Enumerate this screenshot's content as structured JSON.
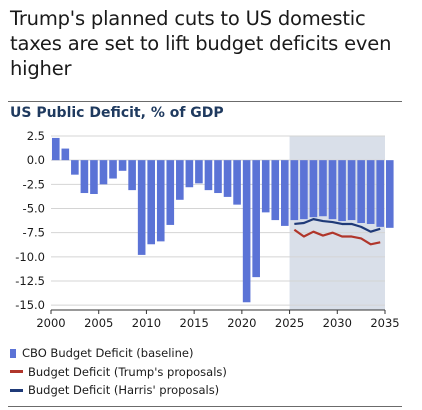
{
  "headline": "Trump's planned cuts to US domestic taxes are set to lift budget deficits even higher",
  "chart_data": {
    "type": "bar",
    "title": "US Public Deficit, % of GDP",
    "xlabel": "",
    "ylabel": "",
    "ylim": [
      -15.5,
      2.5
    ],
    "yticks": [
      2.5,
      0.0,
      -2.5,
      -5.0,
      -7.5,
      -10.0,
      -12.5,
      -15.0
    ],
    "ytick_labels": [
      "2.5",
      "0.0",
      "-2.5",
      "-5.0",
      "-7.5",
      "-10.0",
      "-12.5",
      "-15.0"
    ],
    "xticks": [
      2000,
      2005,
      2010,
      2015,
      2020,
      2025,
      2030,
      2035
    ],
    "xtick_labels": [
      "2000",
      "2005",
      "2010",
      "2015",
      "2020",
      "2025",
      "2030",
      "2035"
    ],
    "grid": "horizontal",
    "projection_shading": [
      2025,
      2035
    ],
    "bars": {
      "name": "CBO Budget Deficit (baseline)",
      "color": "#5b73d6",
      "x": [
        2000,
        2001,
        2002,
        2003,
        2004,
        2005,
        2006,
        2007,
        2008,
        2009,
        2010,
        2011,
        2012,
        2013,
        2014,
        2015,
        2016,
        2017,
        2018,
        2019,
        2020,
        2021,
        2022,
        2023,
        2024,
        2025,
        2026,
        2027,
        2028,
        2029,
        2030,
        2031,
        2032,
        2033,
        2034,
        2035
      ],
      "values": [
        2.3,
        1.2,
        -1.5,
        -3.4,
        -3.5,
        -2.5,
        -1.9,
        -1.1,
        -3.1,
        -9.8,
        -8.7,
        -8.4,
        -6.7,
        -4.1,
        -2.8,
        -2.4,
        -3.1,
        -3.4,
        -3.8,
        -4.6,
        -14.7,
        -12.1,
        -5.4,
        -6.2,
        -6.8,
        -6.2,
        -6.1,
        -5.9,
        -5.8,
        -6.1,
        -6.3,
        -6.2,
        -6.5,
        -6.6,
        -6.9,
        -7.0
      ]
    },
    "series": [
      {
        "name": "Budget Deficit (Trump's proposals)",
        "color": "#b0362b",
        "x": [
          2025.5,
          2026.5,
          2027.5,
          2028.5,
          2029.5,
          2030.5,
          2031.5,
          2032.5,
          2033.5,
          2034.5
        ],
        "values": [
          -7.2,
          -7.9,
          -7.4,
          -7.8,
          -7.5,
          -7.9,
          -7.9,
          -8.1,
          -8.7,
          -8.5
        ]
      },
      {
        "name": "Budget Deficit (Harris' proposals)",
        "color": "#1f3a78",
        "x": [
          2025.5,
          2026.5,
          2027.5,
          2028.5,
          2029.5,
          2030.5,
          2031.5,
          2032.5,
          2033.5,
          2034.5
        ],
        "values": [
          -6.6,
          -6.5,
          -6.1,
          -6.3,
          -6.4,
          -6.6,
          -6.6,
          -6.9,
          -7.4,
          -7.1
        ]
      }
    ],
    "legend": [
      {
        "label": "CBO Budget Deficit (baseline)",
        "kind": "bar",
        "color": "#5b73d6"
      },
      {
        "label": "Budget Deficit (Trump's proposals)",
        "kind": "line",
        "color": "#b0362b"
      },
      {
        "label": "Budget Deficit (Harris' proposals)",
        "kind": "line",
        "color": "#1f3a78"
      }
    ],
    "legend_position": "bottom-left"
  }
}
